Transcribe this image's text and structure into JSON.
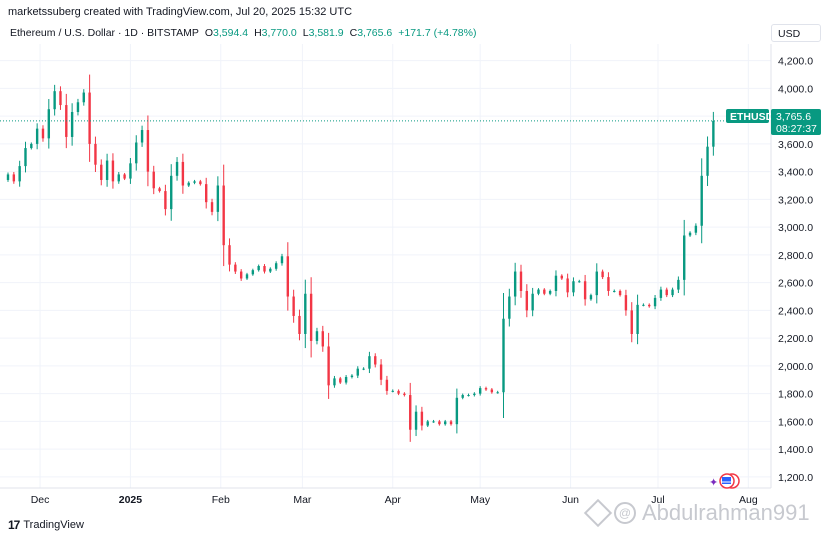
{
  "header": {
    "attribution": "marketssuberg created with TradingView.com, Jul 20, 2025 15:32 UTC"
  },
  "legend": {
    "symbol": "Ethereum / U.S. Dollar · 1D · BITSTAMP",
    "o_label": "O",
    "o_value": "3,594.4",
    "h_label": "H",
    "h_value": "3,770.0",
    "l_label": "L",
    "l_value": "3,581.9",
    "c_label": "C",
    "c_value": "3,765.6",
    "change": "+171.7 (+4.78%)"
  },
  "currency": "USD",
  "price_tag": {
    "name": "ETHUSD",
    "value": "3,765.6",
    "countdown": "08:27:37"
  },
  "branding": {
    "logo_text": "TradingView",
    "watermark": "Abdulrahman991"
  },
  "colors": {
    "up": "#089981",
    "down": "#f23645",
    "grid": "#f0f3fa",
    "last_price_line": "#089981"
  },
  "chart_data": {
    "type": "candlestick",
    "symbol": "ETHUSD",
    "y_ticks": [
      "4,200.0",
      "4,000.0",
      "3,800.0",
      "3,600.0",
      "3,400.0",
      "3,200.0",
      "3,000.0",
      "2,800.0",
      "2,600.0",
      "2,400.0",
      "2,200.0",
      "2,000.0",
      "1,800.0",
      "1,600.0",
      "1,400.0",
      "1,200.0"
    ],
    "x_ticks": [
      "Dec",
      "2025",
      "Feb",
      "Mar",
      "Apr",
      "May",
      "Jun",
      "Jul",
      "Aug"
    ],
    "ylim": [
      1120,
      4320
    ],
    "last_price": 3765.6,
    "series": [
      {
        "date": "2024-11-20",
        "close": 3380
      },
      {
        "date": "2024-11-22",
        "close": 3330
      },
      {
        "date": "2024-11-24",
        "close": 3440
      },
      {
        "date": "2024-11-26",
        "close": 3570
      },
      {
        "date": "2024-11-28",
        "close": 3600
      },
      {
        "date": "2024-11-30",
        "close": 3710
      },
      {
        "date": "2024-12-02",
        "close": 3640
      },
      {
        "date": "2024-12-04",
        "close": 3850
      },
      {
        "date": "2024-12-06",
        "close": 3980
      },
      {
        "date": "2024-12-08",
        "close": 3880
      },
      {
        "date": "2024-12-10",
        "close": 3650
      },
      {
        "date": "2024-12-12",
        "close": 3830
      },
      {
        "date": "2024-12-14",
        "close": 3900
      },
      {
        "date": "2024-12-16",
        "close": 3970
      },
      {
        "date": "2024-12-18",
        "close": 3600
      },
      {
        "date": "2024-12-20",
        "close": 3450
      },
      {
        "date": "2024-12-22",
        "close": 3340
      },
      {
        "date": "2024-12-24",
        "close": 3480
      },
      {
        "date": "2024-12-26",
        "close": 3330
      },
      {
        "date": "2024-12-28",
        "close": 3380
      },
      {
        "date": "2024-12-30",
        "close": 3350
      },
      {
        "date": "2025-01-01",
        "close": 3460
      },
      {
        "date": "2025-01-03",
        "close": 3610
      },
      {
        "date": "2025-01-05",
        "close": 3700
      },
      {
        "date": "2025-01-07",
        "close": 3400
      },
      {
        "date": "2025-01-09",
        "close": 3280
      },
      {
        "date": "2025-01-11",
        "close": 3260
      },
      {
        "date": "2025-01-13",
        "close": 3130
      },
      {
        "date": "2025-01-15",
        "close": 3370
      },
      {
        "date": "2025-01-17",
        "close": 3470
      },
      {
        "date": "2025-01-19",
        "close": 3300
      },
      {
        "date": "2025-01-21",
        "close": 3320
      },
      {
        "date": "2025-01-23",
        "close": 3330
      },
      {
        "date": "2025-01-25",
        "close": 3310
      },
      {
        "date": "2025-01-27",
        "close": 3180
      },
      {
        "date": "2025-01-29",
        "close": 3110
      },
      {
        "date": "2025-01-31",
        "close": 3300
      },
      {
        "date": "2025-02-02",
        "close": 2870
      },
      {
        "date": "2025-02-04",
        "close": 2730
      },
      {
        "date": "2025-02-06",
        "close": 2680
      },
      {
        "date": "2025-02-08",
        "close": 2630
      },
      {
        "date": "2025-02-10",
        "close": 2660
      },
      {
        "date": "2025-02-12",
        "close": 2690
      },
      {
        "date": "2025-02-14",
        "close": 2720
      },
      {
        "date": "2025-02-16",
        "close": 2680
      },
      {
        "date": "2025-02-18",
        "close": 2700
      },
      {
        "date": "2025-02-20",
        "close": 2740
      },
      {
        "date": "2025-02-22",
        "close": 2790
      },
      {
        "date": "2025-02-24",
        "close": 2500
      },
      {
        "date": "2025-02-26",
        "close": 2360
      },
      {
        "date": "2025-02-28",
        "close": 2230
      },
      {
        "date": "2025-03-02",
        "close": 2520
      },
      {
        "date": "2025-03-04",
        "close": 2180
      },
      {
        "date": "2025-03-06",
        "close": 2250
      },
      {
        "date": "2025-03-08",
        "close": 2140
      },
      {
        "date": "2025-03-10",
        "close": 1860
      },
      {
        "date": "2025-03-12",
        "close": 1910
      },
      {
        "date": "2025-03-14",
        "close": 1880
      },
      {
        "date": "2025-03-16",
        "close": 1920
      },
      {
        "date": "2025-03-18",
        "close": 1930
      },
      {
        "date": "2025-03-20",
        "close": 1980
      },
      {
        "date": "2025-03-22",
        "close": 1980
      },
      {
        "date": "2025-03-24",
        "close": 2070
      },
      {
        "date": "2025-03-26",
        "close": 2010
      },
      {
        "date": "2025-03-28",
        "close": 1900
      },
      {
        "date": "2025-03-30",
        "close": 1820
      },
      {
        "date": "2025-04-01",
        "close": 1820
      },
      {
        "date": "2025-04-03",
        "close": 1800
      },
      {
        "date": "2025-04-05",
        "close": 1790
      },
      {
        "date": "2025-04-07",
        "close": 1540
      },
      {
        "date": "2025-04-09",
        "close": 1670
      },
      {
        "date": "2025-04-11",
        "close": 1570
      },
      {
        "date": "2025-04-13",
        "close": 1600
      },
      {
        "date": "2025-04-15",
        "close": 1600
      },
      {
        "date": "2025-04-17",
        "close": 1580
      },
      {
        "date": "2025-04-19",
        "close": 1600
      },
      {
        "date": "2025-04-21",
        "close": 1580
      },
      {
        "date": "2025-04-23",
        "close": 1770
      },
      {
        "date": "2025-04-25",
        "close": 1790
      },
      {
        "date": "2025-04-27",
        "close": 1790
      },
      {
        "date": "2025-04-29",
        "close": 1800
      },
      {
        "date": "2025-05-01",
        "close": 1840
      },
      {
        "date": "2025-05-03",
        "close": 1830
      },
      {
        "date": "2025-05-05",
        "close": 1810
      },
      {
        "date": "2025-05-07",
        "close": 1810
      },
      {
        "date": "2025-05-09",
        "close": 2340
      },
      {
        "date": "2025-05-11",
        "close": 2500
      },
      {
        "date": "2025-05-13",
        "close": 2680
      },
      {
        "date": "2025-05-15",
        "close": 2540
      },
      {
        "date": "2025-05-17",
        "close": 2400
      },
      {
        "date": "2025-05-19",
        "close": 2520
      },
      {
        "date": "2025-05-21",
        "close": 2550
      },
      {
        "date": "2025-05-23",
        "close": 2520
      },
      {
        "date": "2025-05-25",
        "close": 2540
      },
      {
        "date": "2025-05-27",
        "close": 2650
      },
      {
        "date": "2025-05-29",
        "close": 2630
      },
      {
        "date": "2025-05-31",
        "close": 2530
      },
      {
        "date": "2025-06-02",
        "close": 2610
      },
      {
        "date": "2025-06-04",
        "close": 2610
      },
      {
        "date": "2025-06-06",
        "close": 2480
      },
      {
        "date": "2025-06-08",
        "close": 2510
      },
      {
        "date": "2025-06-10",
        "close": 2680
      },
      {
        "date": "2025-06-12",
        "close": 2640
      },
      {
        "date": "2025-06-14",
        "close": 2540
      },
      {
        "date": "2025-06-16",
        "close": 2540
      },
      {
        "date": "2025-06-18",
        "close": 2510
      },
      {
        "date": "2025-06-20",
        "close": 2400
      },
      {
        "date": "2025-06-22",
        "close": 2230
      },
      {
        "date": "2025-06-24",
        "close": 2440
      },
      {
        "date": "2025-06-26",
        "close": 2440
      },
      {
        "date": "2025-06-28",
        "close": 2430
      },
      {
        "date": "2025-06-30",
        "close": 2490
      },
      {
        "date": "2025-07-02",
        "close": 2550
      },
      {
        "date": "2025-07-04",
        "close": 2510
      },
      {
        "date": "2025-07-06",
        "close": 2550
      },
      {
        "date": "2025-07-08",
        "close": 2620
      },
      {
        "date": "2025-07-10",
        "close": 2940
      },
      {
        "date": "2025-07-12",
        "close": 2960
      },
      {
        "date": "2025-07-14",
        "close": 3010
      },
      {
        "date": "2025-07-16",
        "close": 3370
      },
      {
        "date": "2025-07-18",
        "close": 3580
      },
      {
        "date": "2025-07-20",
        "close": 3765.6
      }
    ]
  }
}
